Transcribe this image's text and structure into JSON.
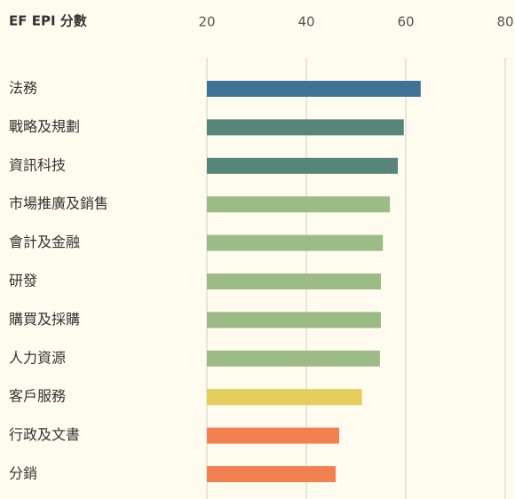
{
  "chart_data": {
    "type": "hbar",
    "title": "EF EPI 分數",
    "categories": [
      "法務",
      "戰略及規劃",
      "資訊科技",
      "市場推廣及銷售",
      "會計及金融",
      "研發",
      "購買及採購",
      "人力資源",
      "客戶服務",
      "行政及文書",
      "分銷"
    ],
    "values": [
      63.0,
      59.6,
      58.4,
      56.8,
      55.4,
      55.0,
      55.0,
      54.8,
      51.2,
      46.6,
      45.9
    ],
    "colors": [
      "#3e7296",
      "#578579",
      "#578579",
      "#9dbb87",
      "#9dbb87",
      "#9dbb87",
      "#9dbb87",
      "#9dbb87",
      "#e5cd5e",
      "#f28051",
      "#f28051"
    ],
    "xlim": [
      20,
      80
    ],
    "xticks": [
      20,
      40,
      60,
      80
    ],
    "grid": true
  }
}
